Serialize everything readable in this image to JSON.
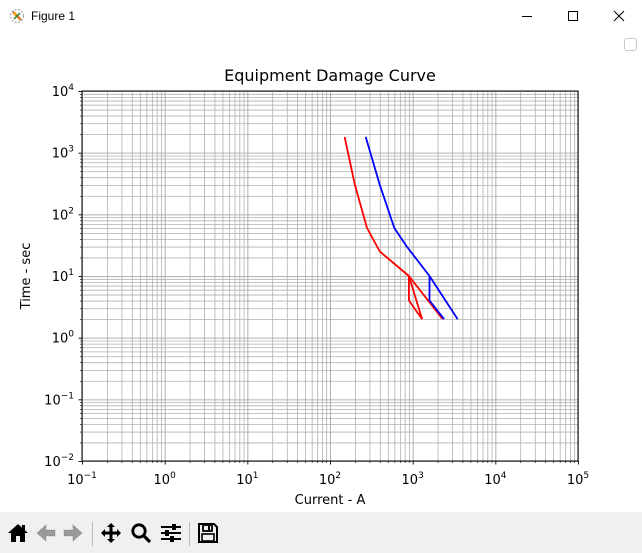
{
  "window": {
    "title": "Figure 1",
    "icons": {
      "app": "matplotlib-icon",
      "minimize": "minimize-icon",
      "maximize": "maximize-icon",
      "close": "close-icon"
    }
  },
  "figure": {
    "title": "Equipment Damage Curve",
    "xlabel": "Current - A",
    "ylabel": "Time - sec",
    "x_tick_labels": [
      {
        "base": "10",
        "exp": "−1"
      },
      {
        "base": "10",
        "exp": "0"
      },
      {
        "base": "10",
        "exp": "1"
      },
      {
        "base": "10",
        "exp": "2"
      },
      {
        "base": "10",
        "exp": "3"
      },
      {
        "base": "10",
        "exp": "4"
      },
      {
        "base": "10",
        "exp": "5"
      }
    ],
    "y_tick_labels": [
      {
        "base": "10",
        "exp": "4"
      },
      {
        "base": "10",
        "exp": "3"
      },
      {
        "base": "10",
        "exp": "2"
      },
      {
        "base": "10",
        "exp": "1"
      },
      {
        "base": "10",
        "exp": "0"
      },
      {
        "base": "10",
        "exp": "−1"
      },
      {
        "base": "10",
        "exp": "−2"
      }
    ]
  },
  "chart_data": {
    "type": "line",
    "title": "Equipment Damage Curve",
    "xlabel": "Current - A",
    "ylabel": "Time - sec",
    "xscale": "log",
    "yscale": "log",
    "xlim": [
      0.1,
      100000
    ],
    "ylim": [
      0.01,
      10000
    ],
    "grid": "both major and minor",
    "legend": null,
    "series": [
      {
        "name": "red-damage-curve",
        "color": "#ff0000",
        "x": [
          150,
          200,
          280,
          400,
          900,
          1300
        ],
        "y": [
          1800,
          300,
          60,
          25,
          10,
          2
        ]
      },
      {
        "name": "red-damage-curve-branch",
        "color": "#ff0000",
        "x": [
          900,
          900,
          1300
        ],
        "y": [
          10,
          4,
          2
        ]
      },
      {
        "name": "red-damage-curve-extension",
        "color": "#ff0000",
        "x": [
          900,
          2300
        ],
        "y": [
          10,
          2
        ]
      },
      {
        "name": "blue-damage-curve",
        "color": "#0000ff",
        "x": [
          270,
          400,
          600,
          850,
          1600,
          3500
        ],
        "y": [
          1800,
          300,
          60,
          30,
          10,
          2
        ]
      },
      {
        "name": "blue-damage-curve-branch",
        "color": "#0000ff",
        "x": [
          1600,
          1600,
          2400
        ],
        "y": [
          10,
          4,
          2
        ]
      }
    ]
  },
  "toolbar": {
    "buttons": [
      {
        "name": "home",
        "icon": "home-icon"
      },
      {
        "name": "back",
        "icon": "back-arrow-icon"
      },
      {
        "name": "forward",
        "icon": "forward-arrow-icon"
      },
      {
        "name": "pan",
        "icon": "pan-icon"
      },
      {
        "name": "zoom",
        "icon": "zoom-icon"
      },
      {
        "name": "configure-subplots",
        "icon": "sliders-icon"
      },
      {
        "name": "save",
        "icon": "save-icon"
      }
    ]
  }
}
